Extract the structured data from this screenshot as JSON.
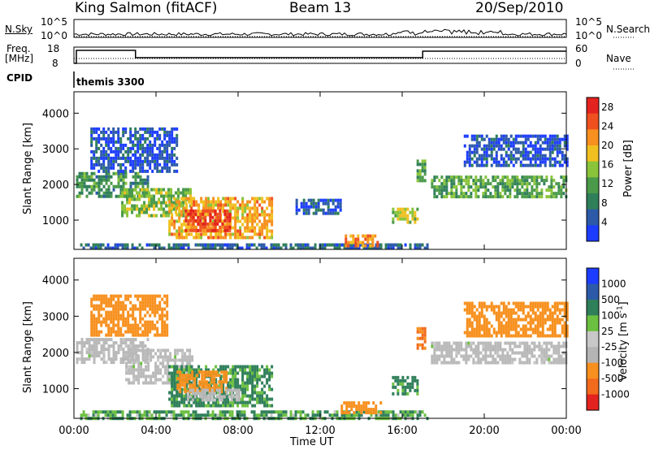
{
  "header": {
    "station": "King Salmon (fitACF)",
    "beam": "Beam 13",
    "date": "20/Sep/2010"
  },
  "noise_panel": {
    "left_label": "N.Sky",
    "right_label": "N.Search",
    "left_ticks": [
      "10^5",
      "10^0"
    ],
    "right_ticks": [
      "10^5",
      "10^0"
    ]
  },
  "freq_panel": {
    "left_label_1": "Freq.",
    "left_label_2": "[MHz]",
    "left_ticks": [
      "18",
      "8"
    ],
    "right_label": "Nave",
    "right_ticks": [
      "60",
      "0"
    ]
  },
  "cpid": {
    "label": "CPID",
    "program": "themis 3300"
  },
  "colors": {
    "power": [
      "#1c3cff",
      "#2c5aa8",
      "#2f7f5a",
      "#4a9a4a",
      "#8ac43a",
      "#f0c020",
      "#f7901e",
      "#ef5020",
      "#e3231f"
    ],
    "velocity": [
      "#1c3cff",
      "#2c5aa8",
      "#2f7f5a",
      "#6cc040",
      "#c8c8c8",
      "#b4b4b4",
      "#f7901e",
      "#f26a1c",
      "#e3231f"
    ],
    "ground_scatter": "#b9b9b9"
  },
  "chart_data": [
    {
      "type": "heatmap",
      "panel": "power",
      "ylabel": "Slant Range [km]",
      "xlabel": "Time UT",
      "x_ticks": [
        "00:00",
        "04:00",
        "08:00",
        "12:00",
        "16:00",
        "20:00",
        "00:00"
      ],
      "x_range_hours": [
        0,
        24
      ],
      "y_ticks": [
        1000,
        2000,
        3000,
        4000
      ],
      "ylim": [
        180,
        4600
      ],
      "colorbar": {
        "label": "Power [dB]",
        "ticks": [
          "4",
          "8",
          "12",
          "16",
          "20",
          "24",
          "28"
        ],
        "range": [
          0,
          30
        ]
      },
      "regions": [
        {
          "t0": 0.1,
          "t1": 3.6,
          "r0": 1700,
          "r1": 2350,
          "level": 10
        },
        {
          "t0": 2.3,
          "t1": 5.7,
          "r0": 1150,
          "r1": 1900,
          "level": 14
        },
        {
          "t0": 4.6,
          "t1": 9.6,
          "r0": 550,
          "r1": 1650,
          "level": 20
        },
        {
          "t0": 5.4,
          "t1": 7.6,
          "r0": 700,
          "r1": 1300,
          "level": 26
        },
        {
          "t0": 0.3,
          "t1": 17.2,
          "r0": 200,
          "r1": 350,
          "level": 6
        },
        {
          "t0": 13.2,
          "t1": 14.8,
          "r0": 320,
          "r1": 600,
          "level": 22
        },
        {
          "t0": 15.5,
          "t1": 16.7,
          "r0": 900,
          "r1": 1350,
          "level": 16
        },
        {
          "t0": 16.7,
          "t1": 17.1,
          "r0": 2100,
          "r1": 2700,
          "level": 12
        },
        {
          "t0": 17.4,
          "t1": 24.0,
          "r0": 1700,
          "r1": 2250,
          "level": 12
        },
        {
          "t0": 19.0,
          "t1": 24.0,
          "r0": 2500,
          "r1": 3400,
          "level": 4
        },
        {
          "t0": 0.8,
          "t1": 5.0,
          "r0": 2400,
          "r1": 3600,
          "level": 4
        },
        {
          "t0": 10.8,
          "t1": 13.0,
          "r0": 1200,
          "r1": 1600,
          "level": 4
        }
      ]
    },
    {
      "type": "heatmap",
      "panel": "velocity",
      "ylabel": "Slant Range [km]",
      "xlabel": "Time UT",
      "x_ticks": [
        "00:00",
        "04:00",
        "08:00",
        "12:00",
        "16:00",
        "20:00",
        "00:00"
      ],
      "x_range_hours": [
        0,
        24
      ],
      "y_ticks": [
        1000,
        2000,
        3000,
        4000
      ],
      "ylim": [
        180,
        4600
      ],
      "colorbar": {
        "label": "Velocity [m s^-1]",
        "ticks": [
          "1000",
          "500",
          "100",
          "25",
          "-25",
          "-100",
          "-500",
          "-1000"
        ]
      },
      "regions": [
        {
          "t0": 0.1,
          "t1": 3.6,
          "r0": 1700,
          "r1": 2400,
          "vel": 0,
          "ground": true
        },
        {
          "t0": 2.5,
          "t1": 5.8,
          "r0": 1150,
          "r1": 2100,
          "vel": 0,
          "ground": true
        },
        {
          "t0": 4.6,
          "t1": 9.6,
          "r0": 550,
          "r1": 1650,
          "vel": 80
        },
        {
          "t0": 5.0,
          "t1": 7.4,
          "r0": 900,
          "r1": 1500,
          "vel": -120
        },
        {
          "t0": 5.5,
          "t1": 8.0,
          "r0": 700,
          "r1": 1000,
          "vel": 0,
          "ground": true
        },
        {
          "t0": 0.3,
          "t1": 17.2,
          "r0": 200,
          "r1": 400,
          "vel": 60
        },
        {
          "t0": 13.0,
          "t1": 15.0,
          "r0": 300,
          "r1": 650,
          "vel": -100
        },
        {
          "t0": 15.5,
          "t1": 16.7,
          "r0": 900,
          "r1": 1350,
          "vel": 90
        },
        {
          "t0": 16.7,
          "t1": 17.1,
          "r0": 2100,
          "r1": 2700,
          "vel": -300
        },
        {
          "t0": 17.4,
          "t1": 24.0,
          "r0": 1700,
          "r1": 2300,
          "vel": 0,
          "ground": true
        },
        {
          "t0": 19.0,
          "t1": 24.0,
          "r0": 2500,
          "r1": 3400,
          "vel": -200
        },
        {
          "t0": 0.8,
          "t1": 4.5,
          "r0": 2500,
          "r1": 3600,
          "vel": -100
        }
      ]
    }
  ]
}
